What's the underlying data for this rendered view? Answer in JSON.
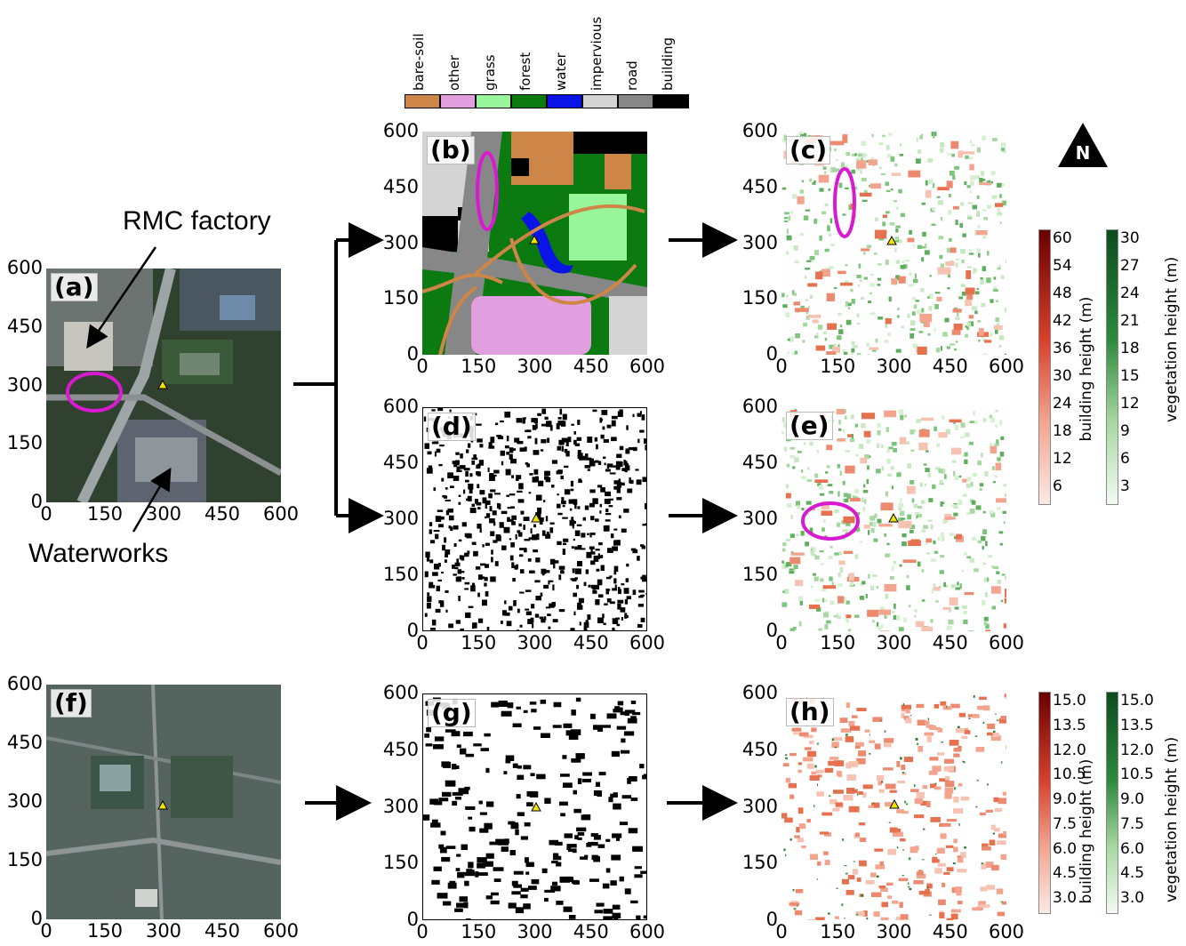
{
  "ticks": [
    "0",
    "150",
    "300",
    "450",
    "600"
  ],
  "panel_labels": {
    "a": "(a)",
    "b": "(b)",
    "c": "(c)",
    "d": "(d)",
    "e": "(e)",
    "f": "(f)",
    "g": "(g)",
    "h": "(h)"
  },
  "annotations": {
    "rmc": "RMC factory",
    "waterworks": "Waterworks"
  },
  "north": "N",
  "landcover_legend": [
    {
      "label": "bare-soil",
      "color": "#cd8548"
    },
    {
      "label": "other",
      "color": "#e29fe0"
    },
    {
      "label": "grass",
      "color": "#98f59a"
    },
    {
      "label": "forest",
      "color": "#0b7a10"
    },
    {
      "label": "water",
      "color": "#0a14e6"
    },
    {
      "label": "impervious",
      "color": "#d4d4d4"
    },
    {
      "label": "road",
      "color": "#878787"
    },
    {
      "label": "building",
      "color": "#000000"
    }
  ],
  "colorbar_top": {
    "building_title": "building height (m)",
    "vegetation_title": "vegetation height (m)",
    "building_ticks": [
      "60",
      "54",
      "48",
      "42",
      "36",
      "30",
      "24",
      "18",
      "12",
      "6"
    ],
    "vegetation_ticks": [
      "30",
      "27",
      "24",
      "21",
      "18",
      "15",
      "12",
      "9",
      "6",
      "3"
    ]
  },
  "colorbar_bottom": {
    "building_title": "building height (m)",
    "vegetation_title": "vegetation height (m)",
    "building_ticks": [
      "15.0",
      "13.5",
      "12.0",
      "10.5",
      "9.0",
      "7.5",
      "6.0",
      "4.5",
      "3.0"
    ],
    "vegetation_ticks": [
      "15.0",
      "13.5",
      "12.0",
      "10.5",
      "9.0",
      "7.5",
      "6.0",
      "4.5",
      "3.0"
    ]
  },
  "colors": {
    "ellipse": "#d81bd0",
    "marker": "#f2e200",
    "building_dark": "#6b0000",
    "building_light": "#fbe9e4",
    "veg_dark": "#0b4d1e",
    "veg_light": "#f3faf2"
  }
}
